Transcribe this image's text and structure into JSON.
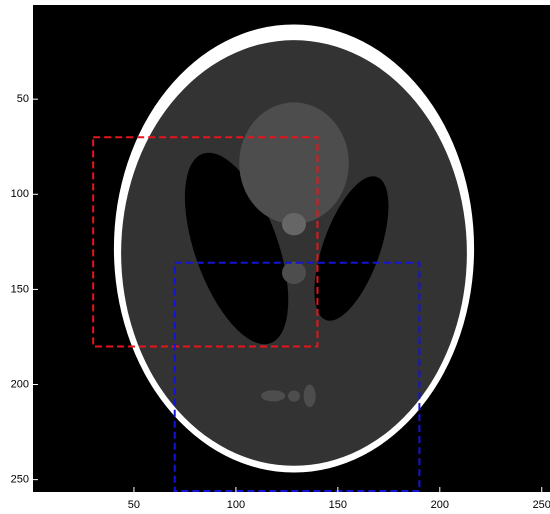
{
  "chart_data": {
    "type": "image",
    "xlim": [
      0.5,
      256.5
    ],
    "ylim": [
      0.5,
      256.5
    ],
    "y_reversed": true,
    "xticks": [
      50,
      100,
      150,
      200,
      250
    ],
    "yticks": [
      50,
      100,
      150,
      200,
      250
    ],
    "rectangles": [
      {
        "color": "#e8141c",
        "x": [
          30,
          140
        ],
        "y": [
          70,
          180
        ]
      },
      {
        "color": "#1414d8",
        "x": [
          70,
          190
        ],
        "y": [
          136,
          256
        ]
      }
    ]
  }
}
